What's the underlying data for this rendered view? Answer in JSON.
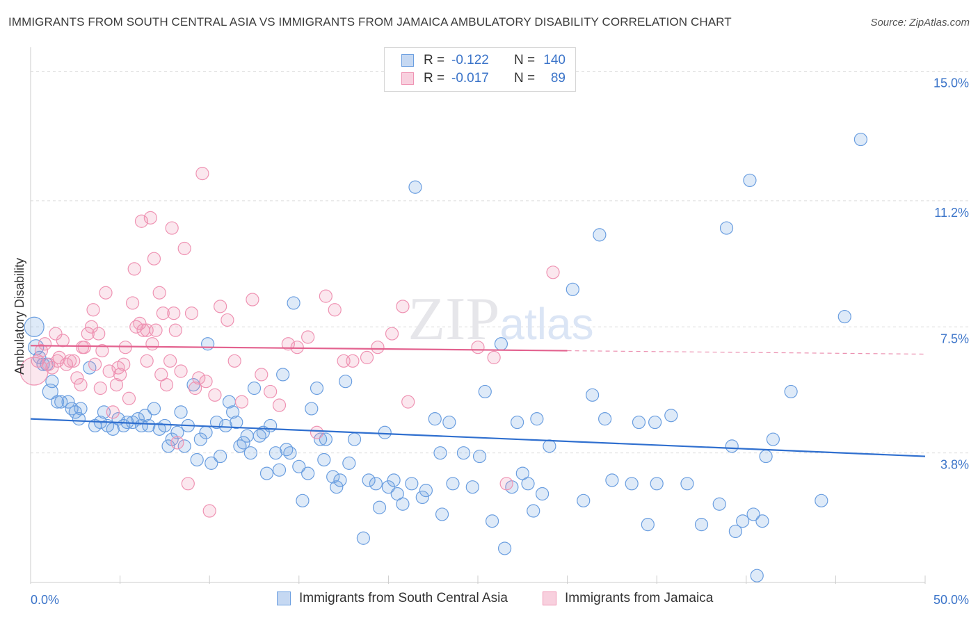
{
  "title": "IMMIGRANTS FROM SOUTH CENTRAL ASIA VS IMMIGRANTS FROM JAMAICA AMBULATORY DISABILITY CORRELATION CHART",
  "source": "Source: ZipAtlas.com",
  "legend": {
    "rows": [
      {
        "r_label": "R =",
        "r_value": "-0.122",
        "n_label": "N =",
        "n_value": "140"
      },
      {
        "r_label": "R =",
        "r_value": "-0.017",
        "n_label": "N =",
        "n_value": "89"
      }
    ]
  },
  "bottom_legend": [
    "Immigrants from South Central Asia",
    "Immigrants from Jamaica"
  ],
  "colors": {
    "blue": "#6a9ee0",
    "blue_line": "#2f6fcf",
    "pink": "#ef93b3",
    "pink_line": "#e3628f",
    "axis_text": "#3b74c9"
  },
  "chart_data": {
    "type": "scatter",
    "ylabel": "Ambulatory Disability",
    "xlabel": "",
    "xlim": [
      0,
      50
    ],
    "ylim": [
      0.0,
      15.5
    ],
    "x_tick_labels": [
      "0.0%",
      "50.0%"
    ],
    "y_ticks": [
      3.8,
      7.5,
      11.2,
      15.0
    ],
    "y_tick_labels": [
      "3.8%",
      "7.5%",
      "11.2%",
      "15.0%"
    ],
    "grid": "horizontal dashed",
    "watermark": "ZIPatlas",
    "series": [
      {
        "name": "Immigrants from South Central Asia",
        "color": "#6a9ee0",
        "trend": {
          "x": [
            0,
            50
          ],
          "y": [
            4.8,
            3.7
          ],
          "solid_until": 50
        },
        "points": [
          [
            0.2,
            7.5
          ],
          [
            0.3,
            6.9
          ],
          [
            0.5,
            6.6
          ],
          [
            0.7,
            6.4
          ],
          [
            0.9,
            6.4
          ],
          [
            1.2,
            5.9
          ],
          [
            1.1,
            5.6
          ],
          [
            1.7,
            5.3
          ],
          [
            1.5,
            5.3
          ],
          [
            2.1,
            5.3
          ],
          [
            2.5,
            5.0
          ],
          [
            2.8,
            5.1
          ],
          [
            2.3,
            5.1
          ],
          [
            3.3,
            6.3
          ],
          [
            2.7,
            4.8
          ],
          [
            3.6,
            4.6
          ],
          [
            3.9,
            4.7
          ],
          [
            4.1,
            5.0
          ],
          [
            4.3,
            4.6
          ],
          [
            4.6,
            4.5
          ],
          [
            4.9,
            4.8
          ],
          [
            5.2,
            4.6
          ],
          [
            5.4,
            4.7
          ],
          [
            5.7,
            4.7
          ],
          [
            6.0,
            4.8
          ],
          [
            6.2,
            4.6
          ],
          [
            6.4,
            4.9
          ],
          [
            6.6,
            4.6
          ],
          [
            6.9,
            5.1
          ],
          [
            7.2,
            4.5
          ],
          [
            7.5,
            4.6
          ],
          [
            7.7,
            4.0
          ],
          [
            7.9,
            4.2
          ],
          [
            8.2,
            4.4
          ],
          [
            8.4,
            5.0
          ],
          [
            8.6,
            4.0
          ],
          [
            8.8,
            4.6
          ],
          [
            9.1,
            5.8
          ],
          [
            9.3,
            3.6
          ],
          [
            9.5,
            4.2
          ],
          [
            9.8,
            4.4
          ],
          [
            9.9,
            7.0
          ],
          [
            10.1,
            3.5
          ],
          [
            10.4,
            4.7
          ],
          [
            10.6,
            3.7
          ],
          [
            10.9,
            4.6
          ],
          [
            11.1,
            5.3
          ],
          [
            11.3,
            5.0
          ],
          [
            11.5,
            4.7
          ],
          [
            11.7,
            4.0
          ],
          [
            11.9,
            4.1
          ],
          [
            12.1,
            4.3
          ],
          [
            12.3,
            3.8
          ],
          [
            12.5,
            5.7
          ],
          [
            12.8,
            4.3
          ],
          [
            13.0,
            4.4
          ],
          [
            13.2,
            3.2
          ],
          [
            13.4,
            4.6
          ],
          [
            13.7,
            3.8
          ],
          [
            13.9,
            3.3
          ],
          [
            14.1,
            6.1
          ],
          [
            14.3,
            3.9
          ],
          [
            14.5,
            3.8
          ],
          [
            14.7,
            8.2
          ],
          [
            15.0,
            3.4
          ],
          [
            15.2,
            2.4
          ],
          [
            15.5,
            3.2
          ],
          [
            15.7,
            5.1
          ],
          [
            16.0,
            5.7
          ],
          [
            16.2,
            4.2
          ],
          [
            16.5,
            4.2
          ],
          [
            16.4,
            3.6
          ],
          [
            16.9,
            3.1
          ],
          [
            17.1,
            2.8
          ],
          [
            17.3,
            3.0
          ],
          [
            17.6,
            5.9
          ],
          [
            17.8,
            3.5
          ],
          [
            18.1,
            4.2
          ],
          [
            18.6,
            1.3
          ],
          [
            18.9,
            3.0
          ],
          [
            19.3,
            2.9
          ],
          [
            19.5,
            2.2
          ],
          [
            19.8,
            4.4
          ],
          [
            20.0,
            2.8
          ],
          [
            20.3,
            3.0
          ],
          [
            20.5,
            2.6
          ],
          [
            20.8,
            2.3
          ],
          [
            21.5,
            11.6
          ],
          [
            21.3,
            2.9
          ],
          [
            21.9,
            2.5
          ],
          [
            22.1,
            2.7
          ],
          [
            22.6,
            4.8
          ],
          [
            22.9,
            3.8
          ],
          [
            23.0,
            2.0
          ],
          [
            23.4,
            4.7
          ],
          [
            23.6,
            2.9
          ],
          [
            24.2,
            3.8
          ],
          [
            24.7,
            2.8
          ],
          [
            25.1,
            3.7
          ],
          [
            25.4,
            5.6
          ],
          [
            25.8,
            1.8
          ],
          [
            26.3,
            7.0
          ],
          [
            26.5,
            1.0
          ],
          [
            26.9,
            2.8
          ],
          [
            27.2,
            4.7
          ],
          [
            27.5,
            3.2
          ],
          [
            27.8,
            2.9
          ],
          [
            28.1,
            2.1
          ],
          [
            28.3,
            4.8
          ],
          [
            28.6,
            2.6
          ],
          [
            29.0,
            4.0
          ],
          [
            30.3,
            8.6
          ],
          [
            30.9,
            2.4
          ],
          [
            31.8,
            10.2
          ],
          [
            32.5,
            3.0
          ],
          [
            33.6,
            2.9
          ],
          [
            34.0,
            4.7
          ],
          [
            34.5,
            1.7
          ],
          [
            35.0,
            2.9
          ],
          [
            31.4,
            5.5
          ],
          [
            32.1,
            4.8
          ],
          [
            34.9,
            4.7
          ],
          [
            36.7,
            2.9
          ],
          [
            37.5,
            1.7
          ],
          [
            38.5,
            2.3
          ],
          [
            38.9,
            10.4
          ],
          [
            39.4,
            1.5
          ],
          [
            39.8,
            1.8
          ],
          [
            40.2,
            11.8
          ],
          [
            40.6,
            0.2
          ],
          [
            41.5,
            4.2
          ],
          [
            40.9,
            1.8
          ],
          [
            41.1,
            3.7
          ],
          [
            42.5,
            5.6
          ],
          [
            44.2,
            2.4
          ],
          [
            45.5,
            7.8
          ],
          [
            46.4,
            13.0
          ],
          [
            40.4,
            2.0
          ],
          [
            39.2,
            4.0
          ],
          [
            35.8,
            4.9
          ]
        ]
      },
      {
        "name": "Immigrants from Jamaica",
        "color": "#ef93b3",
        "trend": {
          "x": [
            0,
            50
          ],
          "y": [
            6.95,
            6.7
          ],
          "solid_until": 30
        },
        "points": [
          [
            0.2,
            6.2
          ],
          [
            0.4,
            6.5
          ],
          [
            0.6,
            6.8
          ],
          [
            0.8,
            7.0
          ],
          [
            1.0,
            6.4
          ],
          [
            1.2,
            6.3
          ],
          [
            1.4,
            7.3
          ],
          [
            1.6,
            6.6
          ],
          [
            1.8,
            7.1
          ],
          [
            2.0,
            6.4
          ],
          [
            2.2,
            6.5
          ],
          [
            2.4,
            6.5
          ],
          [
            2.6,
            6.0
          ],
          [
            2.8,
            5.8
          ],
          [
            3.0,
            6.9
          ],
          [
            3.2,
            7.3
          ],
          [
            3.4,
            7.5
          ],
          [
            3.5,
            8.0
          ],
          [
            3.6,
            6.4
          ],
          [
            3.8,
            7.3
          ],
          [
            4.0,
            6.8
          ],
          [
            4.2,
            8.5
          ],
          [
            4.4,
            6.2
          ],
          [
            4.6,
            5.0
          ],
          [
            4.8,
            5.8
          ],
          [
            5.0,
            6.1
          ],
          [
            5.3,
            6.9
          ],
          [
            5.5,
            5.4
          ],
          [
            5.7,
            8.2
          ],
          [
            5.9,
            7.5
          ],
          [
            6.1,
            7.6
          ],
          [
            6.3,
            7.4
          ],
          [
            6.5,
            6.5
          ],
          [
            6.8,
            7.0
          ],
          [
            7.0,
            7.4
          ],
          [
            7.2,
            8.5
          ],
          [
            7.4,
            7.9
          ],
          [
            7.6,
            5.8
          ],
          [
            7.8,
            6.5
          ],
          [
            8.0,
            7.9
          ],
          [
            8.2,
            4.1
          ],
          [
            8.4,
            6.2
          ],
          [
            8.6,
            9.8
          ],
          [
            8.8,
            2.9
          ],
          [
            9.0,
            7.9
          ],
          [
            9.2,
            5.7
          ],
          [
            9.4,
            6.0
          ],
          [
            9.6,
            12.0
          ],
          [
            9.8,
            5.9
          ],
          [
            10.0,
            2.1
          ],
          [
            10.3,
            5.5
          ],
          [
            10.6,
            8.1
          ],
          [
            11.0,
            7.7
          ],
          [
            11.4,
            6.5
          ],
          [
            11.8,
            5.3
          ],
          [
            12.4,
            8.3
          ],
          [
            12.9,
            6.1
          ],
          [
            13.4,
            5.6
          ],
          [
            13.9,
            5.2
          ],
          [
            14.4,
            7.0
          ],
          [
            14.9,
            6.9
          ],
          [
            15.5,
            7.2
          ],
          [
            16.0,
            4.4
          ],
          [
            16.5,
            8.4
          ],
          [
            17.0,
            8.0
          ],
          [
            17.5,
            6.5
          ],
          [
            18.0,
            6.5
          ],
          [
            18.8,
            6.6
          ],
          [
            19.4,
            6.9
          ],
          [
            20.2,
            7.3
          ],
          [
            20.8,
            8.1
          ],
          [
            21.1,
            5.3
          ],
          [
            5.8,
            9.2
          ],
          [
            6.2,
            10.6
          ],
          [
            6.7,
            10.7
          ],
          [
            7.9,
            10.4
          ],
          [
            6.5,
            7.4
          ],
          [
            8.1,
            7.4
          ],
          [
            7.3,
            6.1
          ],
          [
            5.2,
            6.4
          ],
          [
            4.9,
            6.3
          ],
          [
            6.9,
            9.5
          ],
          [
            3.9,
            5.7
          ],
          [
            1.5,
            6.5
          ],
          [
            2.9,
            6.9
          ],
          [
            29.2,
            9.1
          ],
          [
            25.9,
            6.6
          ],
          [
            26.6,
            2.9
          ],
          [
            25.0,
            6.9
          ]
        ]
      }
    ]
  }
}
